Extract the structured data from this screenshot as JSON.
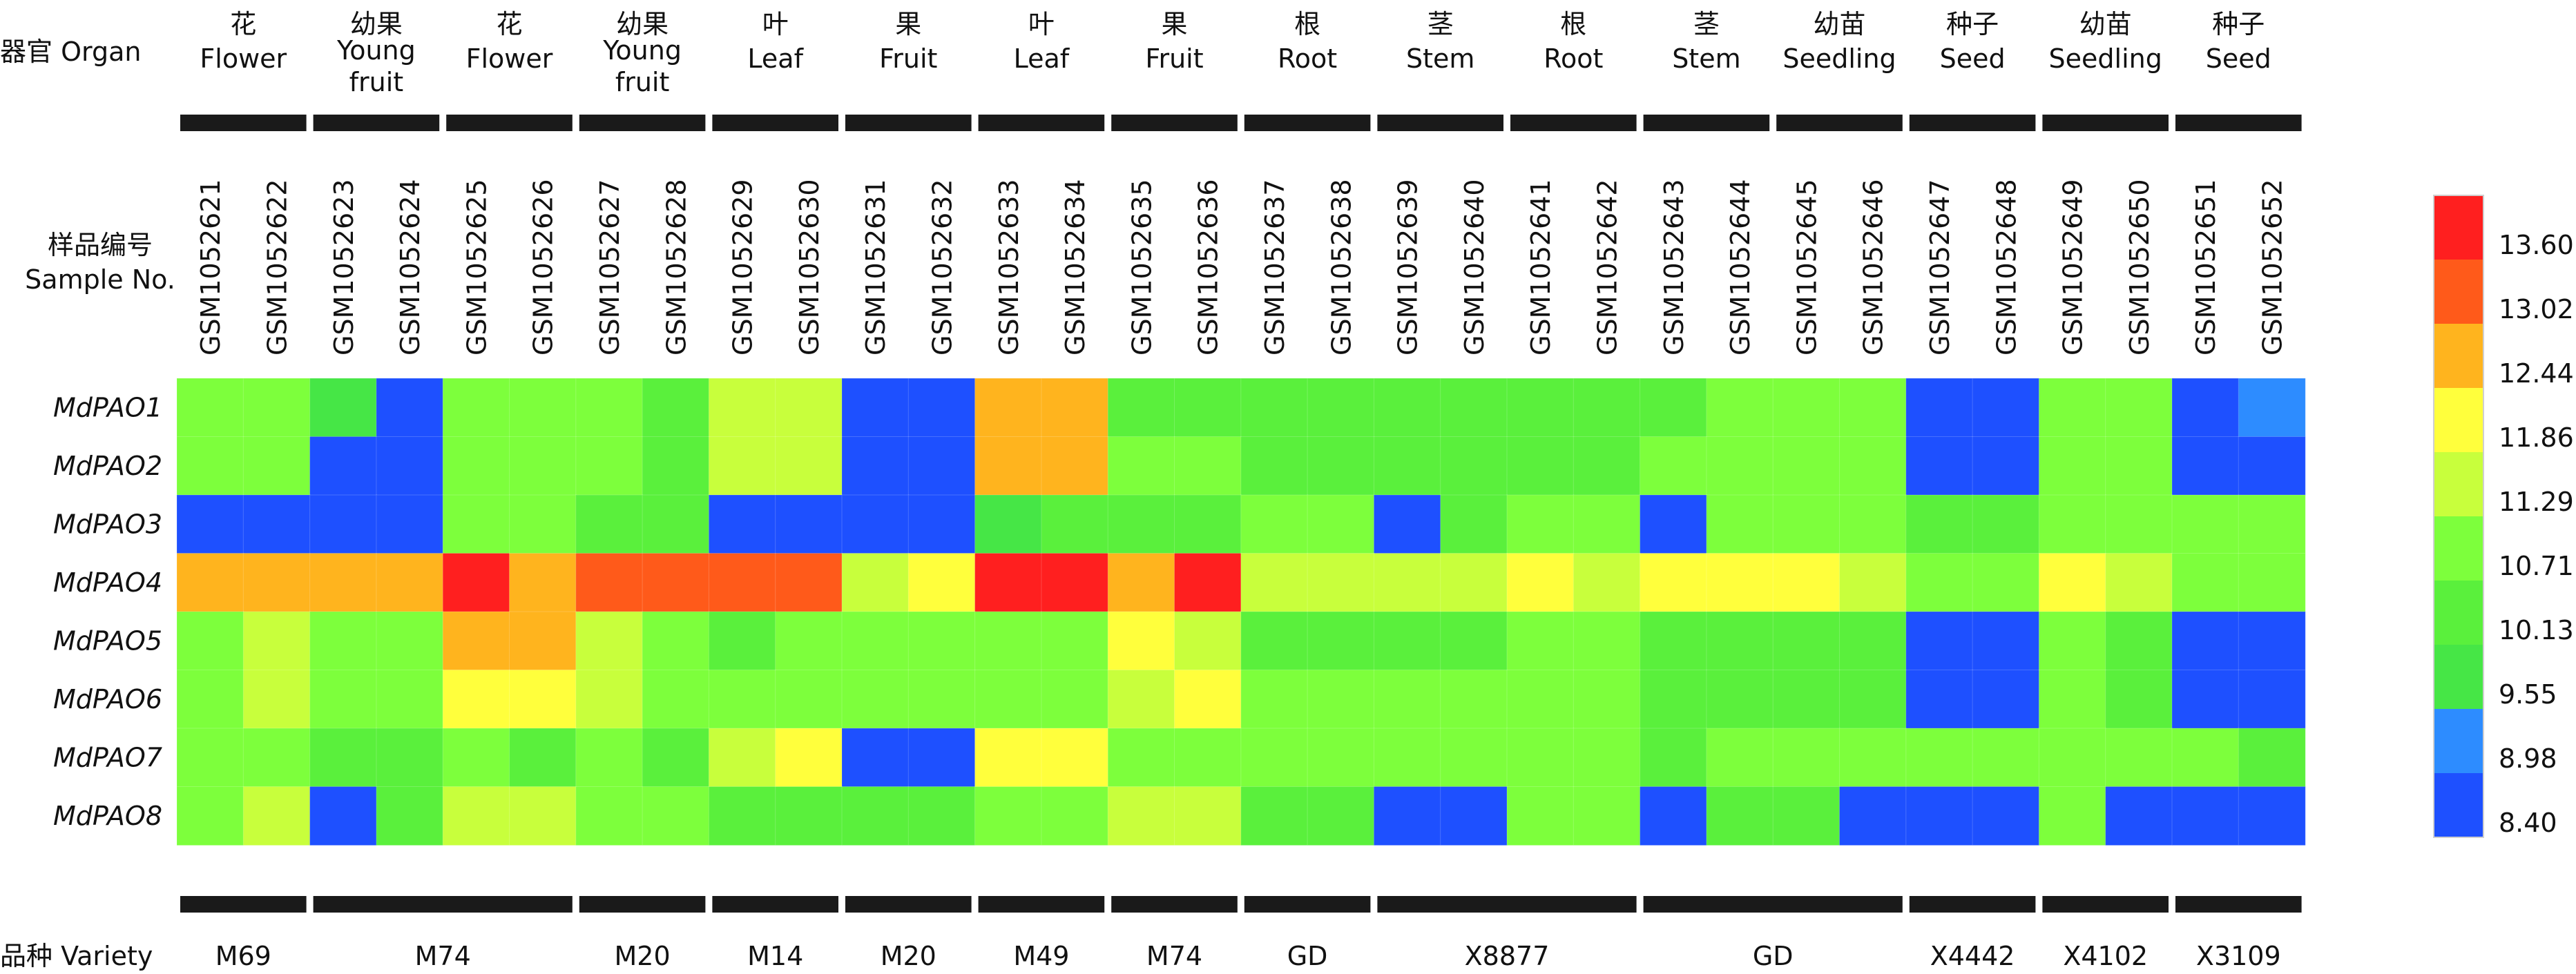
{
  "chart_data": {
    "type": "heatmap",
    "title": "",
    "organ_axis_label": "器官 Organ",
    "sample_axis_label": "样品编号 Sample No.",
    "variety_axis_label": "品种 Variety",
    "organ_groups": [
      {
        "cn": "花",
        "en": "Flower",
        "cols": 2
      },
      {
        "cn": "幼果",
        "en": "Young fruit",
        "cols": 2
      },
      {
        "cn": "花",
        "en": "Flower",
        "cols": 2
      },
      {
        "cn": "幼果",
        "en": "Young fruit",
        "cols": 2
      },
      {
        "cn": "叶",
        "en": "Leaf",
        "cols": 2
      },
      {
        "cn": "果",
        "en": "Fruit",
        "cols": 2
      },
      {
        "cn": "叶",
        "en": "Leaf",
        "cols": 2
      },
      {
        "cn": "果",
        "en": "Fruit",
        "cols": 2
      },
      {
        "cn": "根",
        "en": "Root",
        "cols": 2
      },
      {
        "cn": "茎",
        "en": "Stem",
        "cols": 2
      },
      {
        "cn": "根",
        "en": "Root",
        "cols": 2
      },
      {
        "cn": "茎",
        "en": "Stem",
        "cols": 2
      },
      {
        "cn": "幼苗",
        "en": "Seedling",
        "cols": 2
      },
      {
        "cn": "种子",
        "en": "Seed",
        "cols": 2
      },
      {
        "cn": "幼苗",
        "en": "Seedling",
        "cols": 2
      },
      {
        "cn": "种子",
        "en": "Seed",
        "cols": 2
      }
    ],
    "samples": [
      "GSM1052621",
      "GSM1052622",
      "GSM1052623",
      "GSM1052624",
      "GSM1052625",
      "GSM1052626",
      "GSM1052627",
      "GSM1052628",
      "GSM1052629",
      "GSM1052630",
      "GSM1052631",
      "GSM1052632",
      "GSM1052633",
      "GSM1052634",
      "GSM1052635",
      "GSM1052636",
      "GSM1052637",
      "GSM1052638",
      "GSM1052639",
      "GSM1052640",
      "GSM1052641",
      "GSM1052642",
      "GSM1052643",
      "GSM1052644",
      "GSM1052645",
      "GSM1052646",
      "GSM1052647",
      "GSM1052648",
      "GSM1052649",
      "GSM1052650",
      "GSM1052651",
      "GSM1052652"
    ],
    "genes": [
      "MdPAO1",
      "MdPAO2",
      "MdPAO3",
      "MdPAO4",
      "MdPAO5",
      "MdPAO6",
      "MdPAO7",
      "MdPAO8"
    ],
    "values": [
      [
        10.6,
        10.6,
        9.6,
        8.9,
        10.6,
        10.6,
        10.5,
        10.3,
        11.1,
        11.1,
        8.5,
        8.5,
        12.4,
        12.4,
        10.4,
        10.3,
        10.1,
        10.1,
        10.1,
        10.1,
        10.1,
        10.1,
        10.1,
        10.5,
        10.5,
        10.5,
        8.9,
        8.9,
        10.5,
        10.5,
        8.9,
        9.0
      ],
      [
        10.6,
        10.6,
        8.9,
        8.9,
        10.6,
        10.6,
        10.5,
        10.3,
        11.1,
        11.1,
        8.5,
        8.5,
        12.4,
        12.4,
        10.5,
        10.5,
        10.1,
        10.1,
        10.1,
        10.1,
        10.1,
        10.1,
        10.5,
        10.5,
        10.5,
        10.5,
        8.9,
        8.5,
        10.5,
        10.5,
        8.5,
        8.9
      ],
      [
        8.9,
        8.9,
        8.5,
        8.5,
        10.5,
        10.5,
        10.3,
        10.3,
        8.5,
        8.9,
        8.5,
        8.5,
        9.9,
        10.3,
        10.1,
        10.1,
        10.5,
        10.5,
        8.9,
        10.1,
        10.5,
        10.5,
        8.9,
        10.5,
        10.5,
        10.5,
        10.1,
        10.1,
        10.5,
        10.5,
        10.5,
        10.5
      ],
      [
        12.4,
        12.4,
        12.4,
        12.4,
        13.6,
        12.4,
        13.0,
        13.0,
        13.0,
        13.0,
        11.3,
        11.9,
        13.6,
        13.6,
        12.4,
        13.6,
        11.4,
        11.4,
        11.3,
        11.3,
        11.9,
        11.3,
        11.9,
        11.9,
        11.9,
        11.3,
        10.8,
        10.8,
        11.9,
        11.3,
        10.8,
        10.8
      ],
      [
        10.8,
        11.3,
        10.6,
        10.6,
        12.4,
        12.4,
        11.3,
        10.6,
        10.3,
        10.6,
        10.6,
        10.6,
        10.8,
        10.8,
        11.9,
        11.4,
        10.1,
        10.3,
        10.1,
        10.1,
        10.5,
        10.5,
        10.1,
        10.3,
        10.1,
        10.3,
        8.9,
        8.9,
        10.6,
        10.1,
        8.9,
        8.5
      ],
      [
        10.8,
        11.3,
        10.6,
        10.6,
        11.9,
        11.9,
        11.3,
        10.6,
        10.6,
        10.6,
        10.6,
        10.6,
        10.8,
        10.8,
        11.4,
        11.9,
        10.6,
        10.6,
        10.5,
        10.5,
        10.5,
        10.5,
        10.3,
        10.1,
        10.1,
        10.1,
        8.5,
        8.5,
        10.6,
        10.3,
        8.9,
        8.5
      ],
      [
        10.6,
        10.6,
        10.1,
        10.1,
        10.5,
        10.3,
        10.5,
        10.3,
        11.1,
        11.9,
        8.5,
        8.9,
        11.9,
        11.9,
        10.5,
        10.5,
        10.5,
        10.5,
        10.5,
        10.5,
        10.5,
        10.5,
        10.3,
        10.5,
        10.5,
        10.5,
        10.6,
        10.6,
        10.6,
        10.5,
        10.6,
        10.3
      ],
      [
        10.8,
        11.1,
        8.9,
        10.1,
        11.4,
        11.4,
        10.5,
        10.5,
        10.1,
        10.1,
        10.1,
        10.1,
        10.8,
        10.8,
        11.3,
        11.3,
        10.1,
        10.1,
        8.5,
        8.9,
        10.5,
        10.5,
        8.9,
        10.1,
        10.1,
        8.9,
        8.9,
        8.5,
        10.5,
        8.9,
        8.5,
        8.5
      ]
    ],
    "varieties": [
      {
        "name": "M69",
        "cols": 2
      },
      {
        "name": "M74",
        "cols": 4
      },
      {
        "name": "M20",
        "cols": 2
      },
      {
        "name": "M14",
        "cols": 2
      },
      {
        "name": "M20",
        "cols": 2
      },
      {
        "name": "M49",
        "cols": 2
      },
      {
        "name": "M74",
        "cols": 2
      },
      {
        "name": "GD",
        "cols": 2
      },
      {
        "name": "X8877",
        "cols": 4
      },
      {
        "name": "GD",
        "cols": 4
      },
      {
        "name": "X4442",
        "cols": 2
      },
      {
        "name": "X4102",
        "cols": 2
      },
      {
        "name": "X3109",
        "cols": 2
      }
    ],
    "colorbar": {
      "ticks": [
        "13.60",
        "13.02",
        "12.44",
        "11.86",
        "11.29",
        "10.71",
        "10.13",
        "9.55",
        "8.98",
        "8.40"
      ],
      "colors": [
        "#ff1f1f",
        "#ff5a1a",
        "#ffb41e",
        "#ffff3c",
        "#c8ff3c",
        "#7dff3c",
        "#5af03c",
        "#46e646",
        "#2d8cff",
        "#1e50ff"
      ],
      "min": 8.4,
      "max": 13.6
    }
  }
}
